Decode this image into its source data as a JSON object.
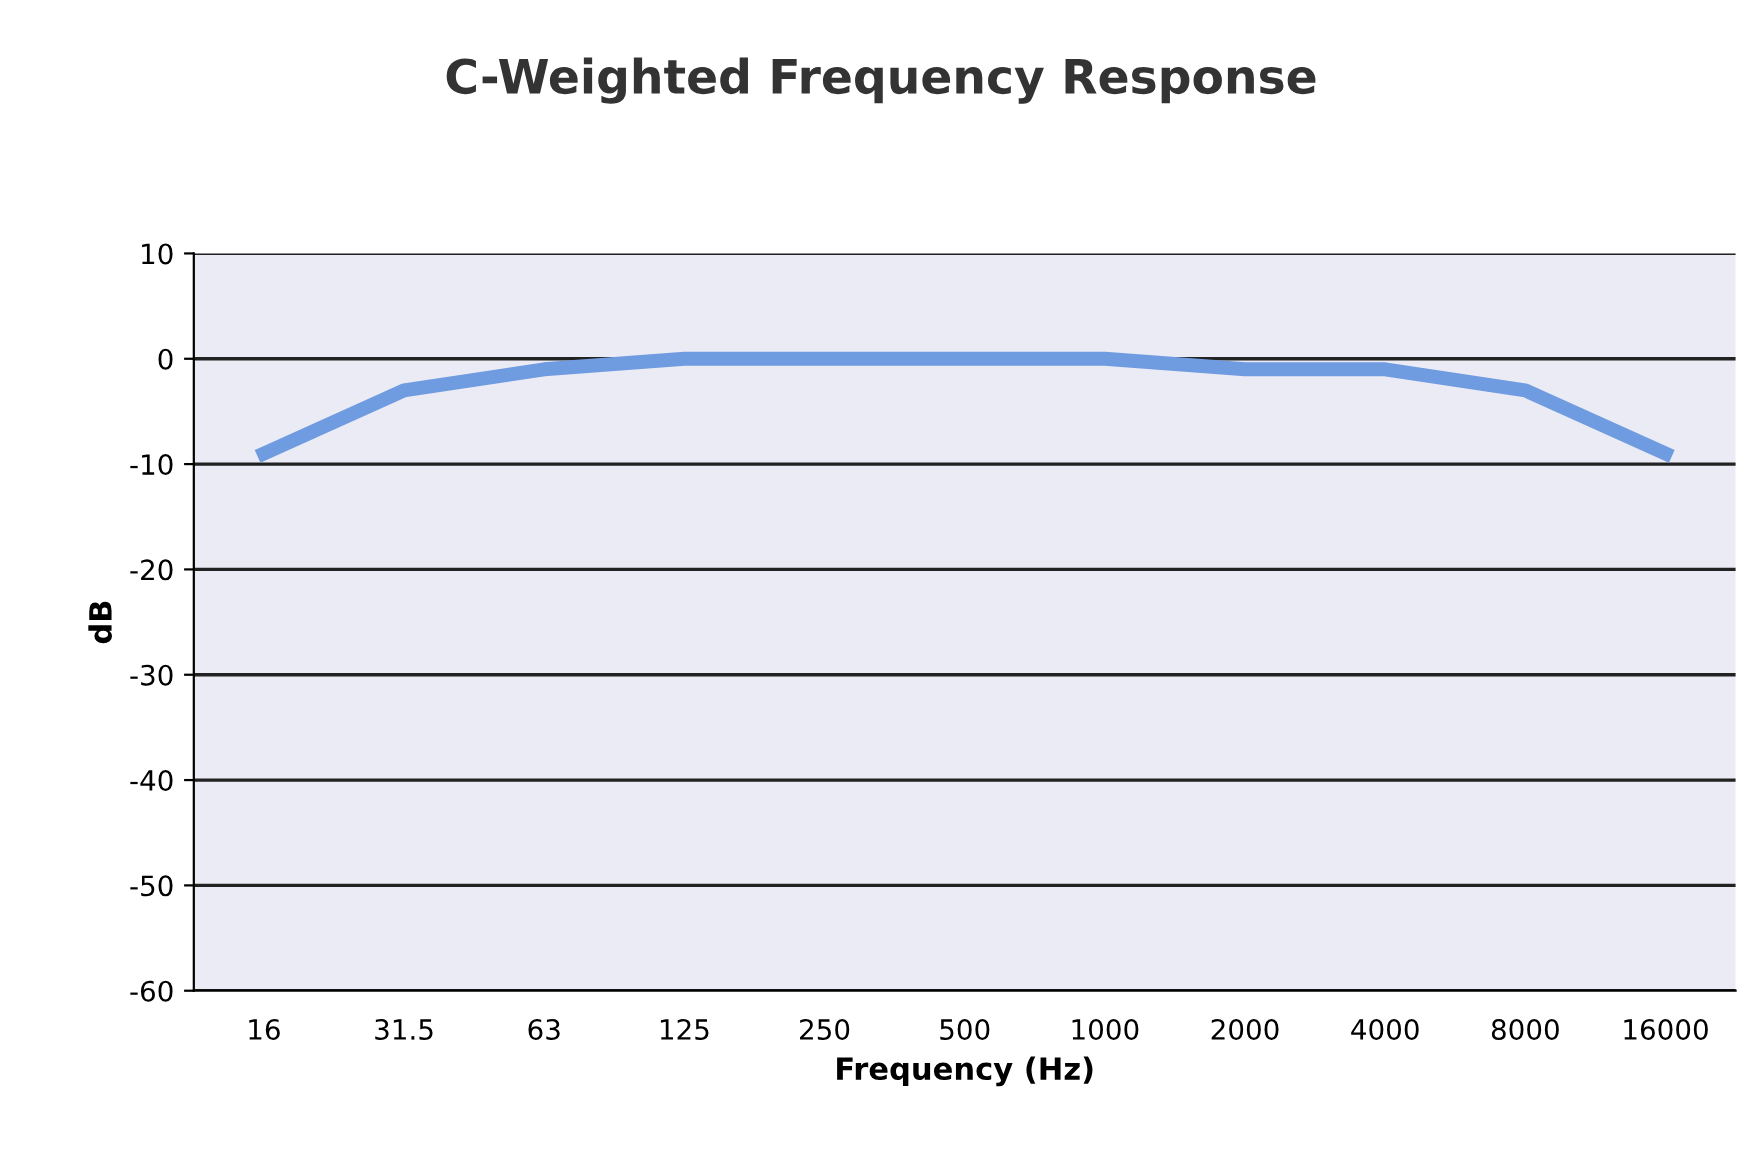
{
  "chart_data": {
    "type": "line",
    "title": "C-Weighted Frequency Response",
    "xlabel": "Frequency (Hz)",
    "ylabel": "dB",
    "categories": [
      "16",
      "31.5",
      "63",
      "125",
      "250",
      "500",
      "1000",
      "2000",
      "4000",
      "8000",
      "16000"
    ],
    "series": [
      {
        "color": "#6f9be0",
        "values": [
          -9,
          -3,
          -1,
          0,
          0,
          0,
          0,
          -1,
          -1,
          -3,
          -9
        ]
      }
    ],
    "ylim": [
      -60,
      10
    ],
    "yticks": [
      -60,
      -50,
      -40,
      -30,
      -20,
      -10,
      0,
      10
    ],
    "grid": "y",
    "marker": "none",
    "line_style": "solid",
    "legend": false
  }
}
